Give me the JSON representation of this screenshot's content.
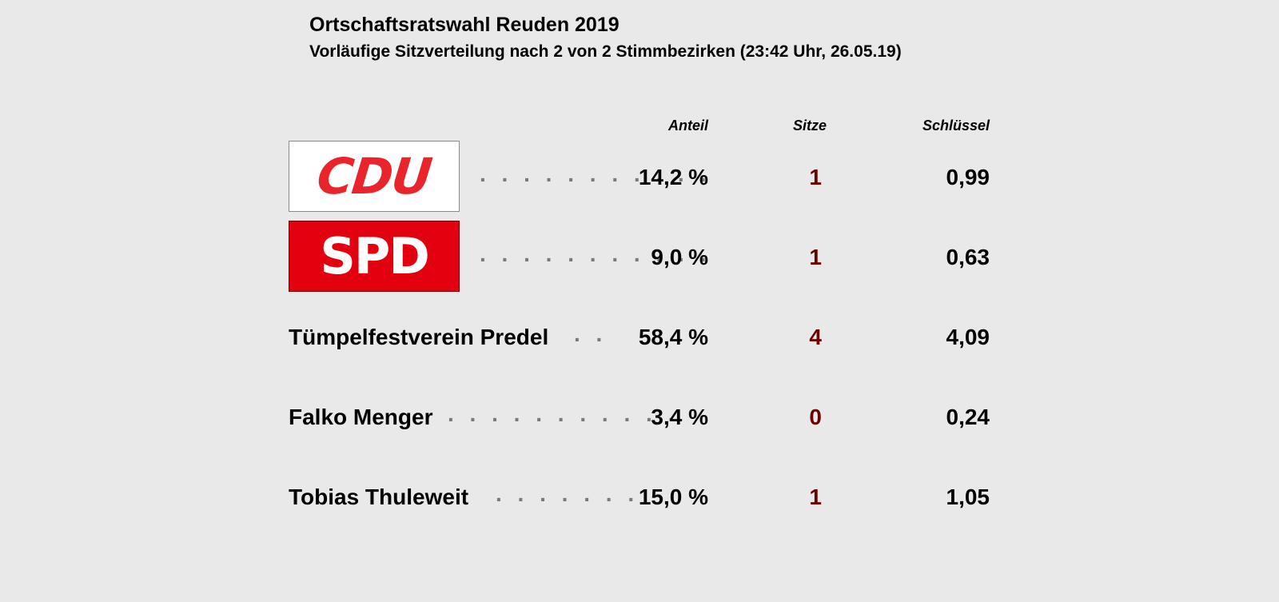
{
  "header": {
    "title": "Ortschaftsratswahl Reuden 2019",
    "subtitle": "Vorläufige Sitzverteilung nach 2 von 2 Stimmbezirken (23:42 Uhr, 26.05.19)"
  },
  "columns": {
    "anteil": "Anteil",
    "sitze": "Sitze",
    "schluessel": "Schlüssel"
  },
  "rows": [
    {
      "logo": "CDU",
      "name": null,
      "dots": ". . . . . . . . . . .",
      "anteil": "14,2 %",
      "sitze": "1",
      "schluessel": "0,99",
      "logo_color": "#e9242a"
    },
    {
      "logo": "SPD",
      "name": null,
      "dots": ". . . . . . . . . . .",
      "anteil": "9,0 %",
      "sitze": "1",
      "schluessel": "0,63",
      "logo_color": "#e3000f"
    },
    {
      "logo": null,
      "name": "Tümpelfestverein Predel",
      "dots": ". .",
      "anteil": "58,4 %",
      "sitze": "4",
      "schluessel": "4,09"
    },
    {
      "logo": null,
      "name": "Falko Menger",
      "dots": ". . . . . . . . . . .",
      "anteil": "3,4 %",
      "sitze": "0",
      "schluessel": "0,24"
    },
    {
      "logo": null,
      "name": "Tobias Thuleweit",
      "dots": ". . . . . . .",
      "anteil": "15,0 %",
      "sitze": "1",
      "schluessel": "1,05"
    }
  ]
}
